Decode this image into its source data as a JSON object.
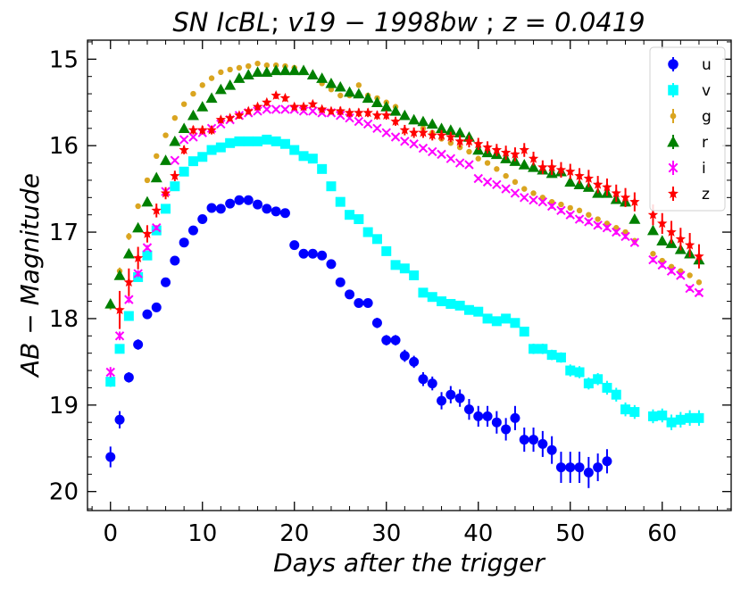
{
  "chart_data": {
    "type": "scatter",
    "title": "SN IcBL; v19 − 1998bw ; z = 0.0419",
    "title_parts": {
      "prefix": "SN IcBL",
      "sep1": "; ",
      "mid": "v19 − 1998bw",
      "sep2": " ; ",
      "zpart": "z = 0.0419"
    },
    "xlabel": "Days after the trigger",
    "ylabel": "AB − Magnitude",
    "xlim": [
      -2.5,
      67.5
    ],
    "ylim": [
      20.22,
      14.78
    ],
    "y_inverted": true,
    "xticks": [
      0,
      10,
      20,
      30,
      40,
      50,
      60
    ],
    "yticks": [
      15,
      16,
      17,
      18,
      19,
      20
    ],
    "legend_position": "top-right",
    "series": [
      {
        "name": "u",
        "color": "#0000ff",
        "marker": "circle",
        "x": [
          0,
          1,
          2,
          3,
          4,
          5,
          6,
          7,
          8,
          9,
          10,
          11,
          12,
          13,
          14,
          15,
          16,
          17,
          18,
          19,
          20,
          21,
          22,
          23,
          24,
          25,
          26,
          27,
          28,
          29,
          30,
          31,
          32,
          33,
          34,
          35,
          36,
          37,
          38,
          39,
          40,
          41,
          42,
          43,
          44,
          45,
          46,
          47,
          48,
          49,
          50,
          51,
          52,
          53,
          54
        ],
        "y": [
          19.6,
          19.17,
          18.68,
          18.3,
          17.95,
          17.87,
          17.58,
          17.33,
          17.12,
          16.98,
          16.85,
          16.72,
          16.73,
          16.67,
          16.63,
          16.63,
          16.68,
          16.73,
          16.76,
          16.78,
          17.15,
          17.25,
          17.25,
          17.27,
          17.37,
          17.58,
          17.72,
          17.82,
          17.82,
          18.05,
          18.25,
          18.25,
          18.43,
          18.5,
          18.7,
          18.75,
          18.95,
          18.88,
          18.92,
          19.05,
          19.13,
          19.13,
          19.2,
          19.28,
          19.15,
          19.4,
          19.4,
          19.45,
          19.52,
          19.72,
          19.72,
          19.72,
          19.78,
          19.72,
          19.65
        ],
        "err": [
          0.12,
          0.1,
          0.06,
          0.06,
          0.05,
          0.04,
          0.04,
          0.04,
          0.03,
          0.03,
          0.03,
          0.03,
          0.03,
          0.03,
          0.03,
          0.03,
          0.03,
          0.03,
          0.03,
          0.03,
          0.04,
          0.04,
          0.04,
          0.04,
          0.04,
          0.05,
          0.05,
          0.05,
          0.05,
          0.06,
          0.06,
          0.06,
          0.07,
          0.07,
          0.08,
          0.08,
          0.1,
          0.1,
          0.1,
          0.12,
          0.12,
          0.12,
          0.13,
          0.13,
          0.14,
          0.14,
          0.14,
          0.15,
          0.16,
          0.18,
          0.18,
          0.18,
          0.18,
          0.16,
          0.14
        ]
      },
      {
        "name": "v",
        "color": "#00ffff",
        "marker": "square",
        "x": [
          0,
          1,
          2,
          3,
          4,
          5,
          6,
          7,
          8,
          9,
          10,
          11,
          12,
          13,
          14,
          15,
          16,
          17,
          18,
          19,
          20,
          21,
          22,
          23,
          24,
          25,
          26,
          27,
          28,
          29,
          30,
          31,
          32,
          33,
          34,
          35,
          36,
          37,
          38,
          39,
          40,
          41,
          42,
          43,
          44,
          45,
          46,
          47,
          48,
          49,
          50,
          51,
          52,
          53,
          54,
          55,
          56,
          57,
          59,
          60,
          61,
          62,
          63,
          64
        ],
        "y": [
          18.73,
          18.35,
          17.97,
          17.52,
          17.27,
          16.98,
          16.73,
          16.47,
          16.3,
          16.18,
          16.13,
          16.05,
          16.02,
          15.97,
          15.95,
          15.95,
          15.95,
          15.93,
          15.95,
          15.98,
          16.05,
          16.12,
          16.15,
          16.27,
          16.47,
          16.65,
          16.8,
          16.85,
          17.0,
          17.08,
          17.22,
          17.38,
          17.42,
          17.5,
          17.7,
          17.75,
          17.8,
          17.83,
          17.85,
          17.9,
          17.92,
          18.0,
          18.03,
          18.0,
          18.05,
          18.15,
          18.35,
          18.35,
          18.42,
          18.45,
          18.6,
          18.62,
          18.75,
          18.7,
          18.8,
          18.88,
          19.05,
          19.08,
          19.13,
          19.12,
          19.2,
          19.17,
          19.15,
          19.15
        ],
        "err": [
          0.06,
          0.05,
          0.04,
          0.04,
          0.03,
          0.03,
          0.03,
          0.03,
          0.02,
          0.02,
          0.02,
          0.02,
          0.02,
          0.02,
          0.02,
          0.02,
          0.02,
          0.02,
          0.02,
          0.02,
          0.02,
          0.02,
          0.02,
          0.02,
          0.02,
          0.03,
          0.03,
          0.03,
          0.03,
          0.03,
          0.03,
          0.03,
          0.03,
          0.03,
          0.04,
          0.04,
          0.04,
          0.04,
          0.04,
          0.04,
          0.04,
          0.05,
          0.05,
          0.05,
          0.05,
          0.05,
          0.06,
          0.06,
          0.06,
          0.06,
          0.07,
          0.07,
          0.07,
          0.07,
          0.08,
          0.08,
          0.08,
          0.08,
          0.08,
          0.08,
          0.09,
          0.09,
          0.09,
          0.09
        ]
      },
      {
        "name": "g",
        "color": "#daa520",
        "marker": "dot",
        "x": [
          0,
          1,
          2,
          3,
          4,
          5,
          6,
          7,
          8,
          9,
          10,
          11,
          12,
          13,
          14,
          15,
          16,
          17,
          18,
          19,
          20,
          21,
          22,
          23,
          24,
          25,
          26,
          27,
          28,
          29,
          30,
          31,
          32,
          33,
          34,
          35,
          36,
          37,
          38,
          39,
          40,
          41,
          42,
          43,
          44,
          45,
          46,
          47,
          48,
          49,
          50,
          51,
          52,
          53,
          54,
          55,
          56,
          57,
          59,
          60,
          61,
          62,
          63,
          64
        ],
        "y": [
          17.85,
          17.45,
          17.05,
          16.7,
          16.4,
          16.12,
          15.88,
          15.68,
          15.52,
          15.4,
          15.3,
          15.22,
          15.15,
          15.12,
          15.1,
          15.08,
          15.05,
          15.07,
          15.07,
          15.08,
          15.1,
          15.15,
          15.2,
          15.28,
          15.35,
          15.42,
          15.42,
          15.3,
          15.42,
          15.45,
          15.5,
          15.55,
          15.65,
          15.72,
          15.8,
          15.85,
          15.92,
          15.97,
          16.02,
          16.07,
          16.15,
          16.2,
          16.27,
          16.35,
          16.42,
          16.5,
          16.55,
          16.6,
          16.65,
          16.68,
          16.72,
          16.75,
          16.8,
          16.85,
          16.9,
          16.95,
          17.0,
          17.1,
          17.25,
          17.33,
          17.4,
          17.45,
          17.5,
          17.58
        ],
        "err": [
          0.05,
          0.04,
          0.04,
          0.03,
          0.03,
          0.02,
          0.02,
          0.02,
          0.02,
          0.02,
          0.02,
          0.02,
          0.02,
          0.02,
          0.02,
          0.02,
          0.02,
          0.02,
          0.02,
          0.02,
          0.02,
          0.02,
          0.02,
          0.02,
          0.02,
          0.02,
          0.02,
          0.02,
          0.02,
          0.02,
          0.02,
          0.02,
          0.02,
          0.02,
          0.02,
          0.02,
          0.02,
          0.02,
          0.02,
          0.02,
          0.02,
          0.02,
          0.02,
          0.02,
          0.03,
          0.03,
          0.03,
          0.03,
          0.03,
          0.03,
          0.03,
          0.03,
          0.03,
          0.03,
          0.03,
          0.03,
          0.03,
          0.03,
          0.03,
          0.03,
          0.03,
          0.03,
          0.03,
          0.03
        ]
      },
      {
        "name": "r",
        "color": "#008000",
        "marker": "triangle",
        "x": [
          0,
          1,
          2,
          3,
          4,
          5,
          6,
          7,
          8,
          9,
          10,
          11,
          12,
          13,
          14,
          15,
          16,
          17,
          18,
          19,
          20,
          21,
          22,
          23,
          24,
          25,
          26,
          27,
          28,
          29,
          30,
          31,
          32,
          33,
          34,
          35,
          36,
          37,
          38,
          39,
          40,
          41,
          42,
          43,
          44,
          45,
          46,
          47,
          48,
          49,
          50,
          51,
          52,
          53,
          54,
          55,
          56,
          57,
          59,
          60,
          61,
          62,
          63,
          64
        ],
        "y": [
          17.83,
          17.5,
          17.25,
          16.95,
          16.65,
          16.37,
          16.17,
          15.95,
          15.8,
          15.65,
          15.55,
          15.45,
          15.35,
          15.3,
          15.22,
          15.18,
          15.15,
          15.15,
          15.13,
          15.13,
          15.13,
          15.13,
          15.18,
          15.22,
          15.28,
          15.32,
          15.38,
          15.4,
          15.45,
          15.5,
          15.55,
          15.6,
          15.65,
          15.7,
          15.72,
          15.75,
          15.8,
          15.82,
          15.85,
          15.9,
          16.05,
          16.08,
          16.1,
          16.15,
          16.18,
          16.22,
          16.25,
          16.28,
          16.32,
          16.3,
          16.42,
          16.45,
          16.48,
          16.55,
          16.55,
          16.62,
          16.65,
          16.85,
          16.98,
          17.1,
          17.13,
          17.2,
          17.25,
          17.32
        ],
        "err": [
          0.05,
          0.04,
          0.04,
          0.03,
          0.03,
          0.03,
          0.02,
          0.02,
          0.02,
          0.02,
          0.02,
          0.02,
          0.02,
          0.02,
          0.02,
          0.02,
          0.02,
          0.02,
          0.02,
          0.02,
          0.02,
          0.02,
          0.02,
          0.02,
          0.02,
          0.02,
          0.02,
          0.02,
          0.02,
          0.02,
          0.02,
          0.02,
          0.02,
          0.02,
          0.02,
          0.02,
          0.02,
          0.02,
          0.02,
          0.02,
          0.02,
          0.02,
          0.02,
          0.02,
          0.02,
          0.03,
          0.03,
          0.03,
          0.03,
          0.03,
          0.03,
          0.03,
          0.03,
          0.03,
          0.03,
          0.03,
          0.03,
          0.03,
          0.03,
          0.03,
          0.03,
          0.03,
          0.03,
          0.03
        ]
      },
      {
        "name": "i",
        "color": "#ff00ff",
        "marker": "x",
        "x": [
          0,
          1,
          2,
          3,
          4,
          5,
          6,
          7,
          8,
          9,
          10,
          11,
          12,
          13,
          14,
          15,
          16,
          17,
          18,
          19,
          20,
          21,
          22,
          23,
          24,
          25,
          26,
          27,
          28,
          29,
          30,
          31,
          32,
          33,
          34,
          35,
          36,
          37,
          38,
          39,
          40,
          41,
          42,
          43,
          44,
          45,
          46,
          47,
          48,
          49,
          50,
          51,
          52,
          53,
          54,
          55,
          56,
          57,
          59,
          60,
          61,
          62,
          63,
          64
        ],
        "y": [
          18.62,
          18.2,
          17.78,
          17.48,
          17.18,
          16.95,
          16.53,
          16.17,
          15.93,
          15.9,
          15.85,
          15.8,
          15.75,
          15.7,
          15.65,
          15.62,
          15.6,
          15.58,
          15.58,
          15.58,
          15.58,
          15.6,
          15.6,
          15.62,
          15.62,
          15.65,
          15.68,
          15.72,
          15.75,
          15.8,
          15.85,
          15.9,
          15.95,
          15.98,
          16.03,
          16.07,
          16.1,
          16.15,
          16.2,
          16.22,
          16.38,
          16.42,
          16.45,
          16.5,
          16.55,
          16.6,
          16.63,
          16.65,
          16.7,
          16.75,
          16.8,
          16.85,
          16.88,
          16.92,
          16.95,
          17.0,
          17.05,
          17.12,
          17.32,
          17.38,
          17.45,
          17.5,
          17.65,
          17.7
        ],
        "err": [
          0.06,
          0.05,
          0.04,
          0.04,
          0.03,
          0.03,
          0.03,
          0.02,
          0.02,
          0.02,
          0.02,
          0.02,
          0.02,
          0.02,
          0.02,
          0.02,
          0.02,
          0.02,
          0.02,
          0.02,
          0.02,
          0.02,
          0.02,
          0.02,
          0.02,
          0.02,
          0.02,
          0.02,
          0.02,
          0.02,
          0.02,
          0.02,
          0.02,
          0.02,
          0.02,
          0.02,
          0.02,
          0.02,
          0.02,
          0.02,
          0.02,
          0.02,
          0.02,
          0.02,
          0.02,
          0.02,
          0.02,
          0.02,
          0.03,
          0.03,
          0.03,
          0.03,
          0.03,
          0.03,
          0.03,
          0.03,
          0.03,
          0.03,
          0.03,
          0.03,
          0.03,
          0.03,
          0.03,
          0.03
        ]
      },
      {
        "name": "z",
        "color": "#ff0000",
        "marker": "star",
        "x": [
          1,
          2,
          3,
          4,
          5,
          6,
          7,
          8,
          9,
          10,
          11,
          12,
          13,
          14,
          15,
          16,
          17,
          18,
          19,
          20,
          21,
          22,
          23,
          24,
          25,
          26,
          27,
          28,
          29,
          30,
          31,
          32,
          33,
          34,
          35,
          36,
          37,
          38,
          39,
          40,
          41,
          42,
          43,
          44,
          45,
          46,
          47,
          48,
          49,
          50,
          51,
          52,
          53,
          54,
          55,
          56,
          57,
          59,
          60,
          61,
          62,
          63,
          64
        ],
        "y": [
          17.9,
          17.58,
          17.3,
          17.02,
          16.75,
          16.55,
          16.35,
          16.05,
          15.82,
          15.82,
          15.82,
          15.7,
          15.68,
          15.65,
          15.6,
          15.55,
          15.5,
          15.42,
          15.45,
          15.55,
          15.55,
          15.52,
          15.58,
          15.6,
          15.6,
          15.62,
          15.62,
          15.62,
          15.65,
          15.65,
          15.72,
          15.82,
          15.85,
          15.85,
          15.88,
          15.88,
          15.9,
          15.95,
          15.95,
          15.98,
          16.02,
          16.05,
          16.08,
          16.1,
          16.05,
          16.15,
          16.25,
          16.25,
          16.28,
          16.3,
          16.35,
          16.38,
          16.45,
          16.48,
          16.55,
          16.6,
          16.65,
          16.8,
          16.9,
          17.0,
          17.08,
          17.15,
          17.28
        ],
        "err": [
          0.22,
          0.16,
          0.13,
          0.1,
          0.08,
          0.07,
          0.06,
          0.05,
          0.05,
          0.05,
          0.05,
          0.04,
          0.04,
          0.04,
          0.04,
          0.04,
          0.04,
          0.04,
          0.04,
          0.04,
          0.04,
          0.04,
          0.04,
          0.04,
          0.05,
          0.05,
          0.05,
          0.05,
          0.05,
          0.05,
          0.05,
          0.06,
          0.06,
          0.06,
          0.06,
          0.06,
          0.06,
          0.07,
          0.07,
          0.07,
          0.07,
          0.07,
          0.08,
          0.08,
          0.08,
          0.08,
          0.08,
          0.09,
          0.09,
          0.09,
          0.09,
          0.1,
          0.1,
          0.1,
          0.1,
          0.11,
          0.11,
          0.12,
          0.12,
          0.13,
          0.13,
          0.14,
          0.14
        ]
      }
    ]
  }
}
